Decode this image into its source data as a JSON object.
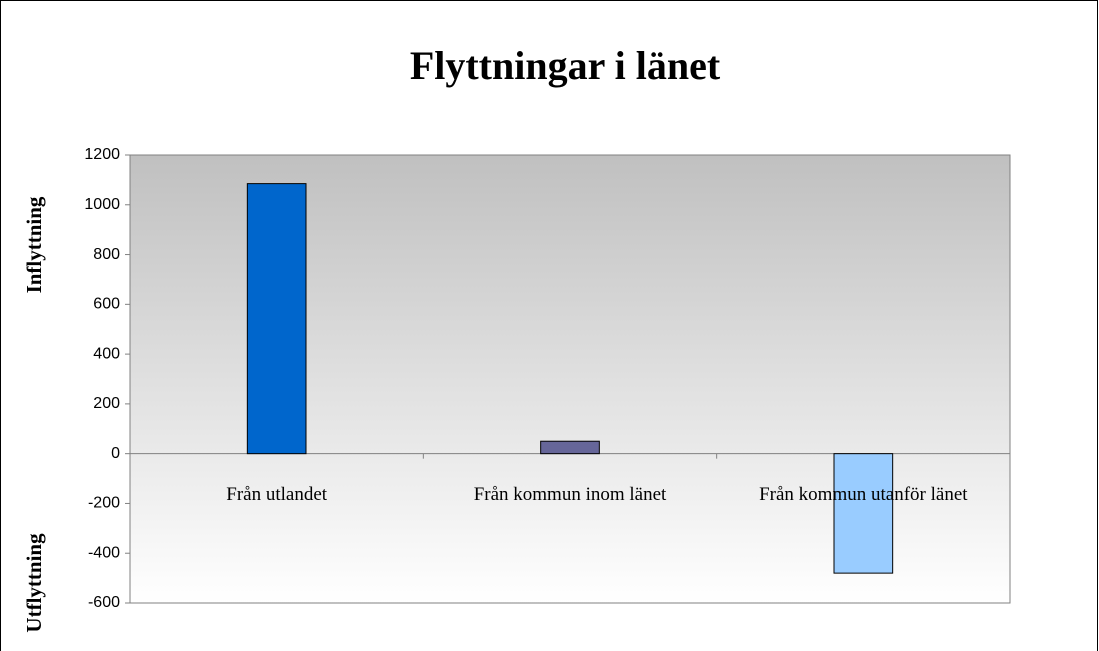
{
  "chart_data": {
    "type": "bar",
    "title": "Flyttningar i länet",
    "ylabel_top": "Inflyttning",
    "ylabel_bottom": "Utflyttning",
    "categories": [
      "Från utlandet",
      "Från kommun inom länet",
      "Från kommun utanför länet"
    ],
    "values": [
      1085,
      50,
      -480
    ],
    "colors": [
      "#0066cc",
      "#666699",
      "#99ccff"
    ],
    "ylim": [
      -600,
      1200
    ],
    "yticks": [
      -600,
      -400,
      -200,
      0,
      200,
      400,
      600,
      800,
      1000,
      1200
    ],
    "grid": false
  }
}
